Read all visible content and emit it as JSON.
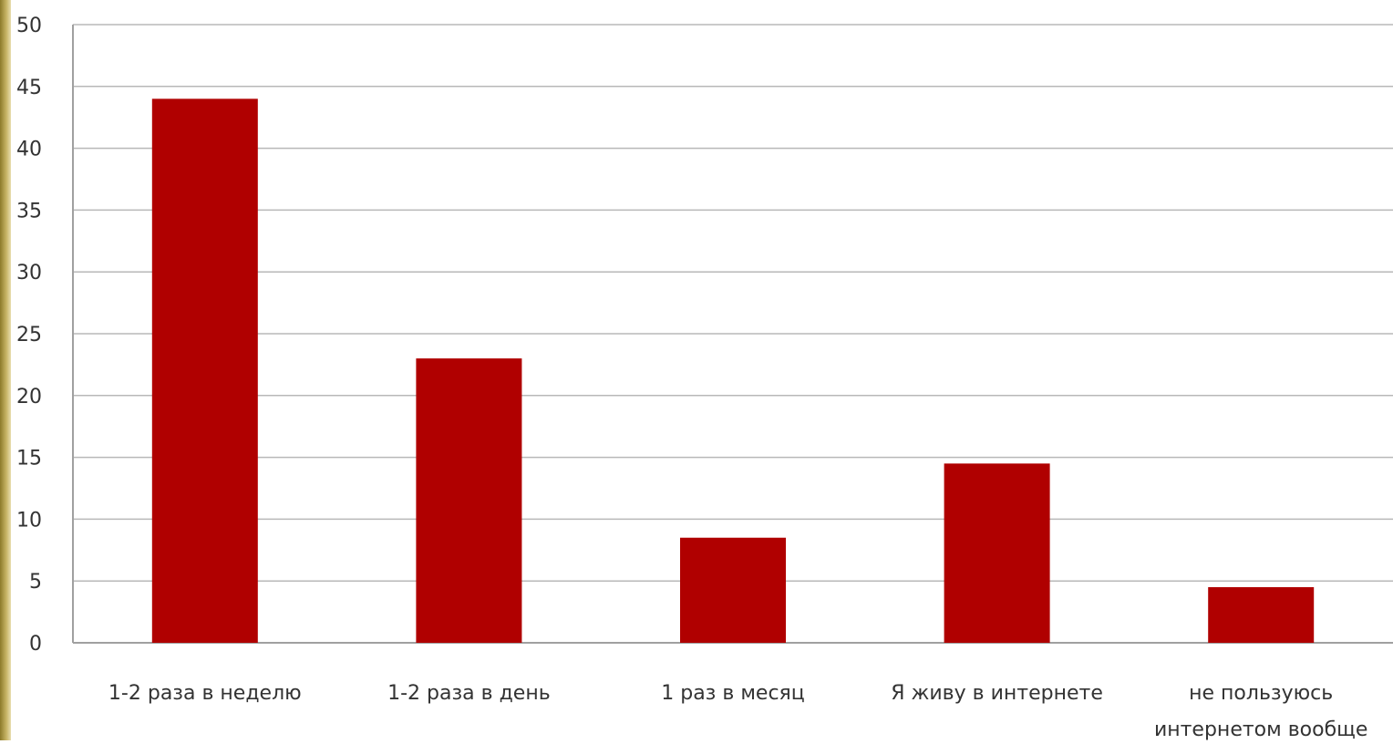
{
  "chart_data": {
    "type": "bar",
    "title": "",
    "xlabel": "",
    "ylabel": "",
    "categories": [
      [
        "1-2 раза в неделю"
      ],
      [
        "1-2 раза в день"
      ],
      [
        "1 раз в месяц"
      ],
      [
        "Я живу в интернете"
      ],
      [
        "не пользуюсь",
        "интернетом вообще"
      ]
    ],
    "values": [
      44,
      23,
      8.5,
      14.5,
      4.5
    ],
    "ylim": [
      0,
      50
    ],
    "yticks": [
      0,
      5,
      10,
      15,
      20,
      25,
      30,
      35,
      40,
      45,
      50
    ],
    "grid": true,
    "legend": "none",
    "colors": {
      "bar": "#b00000",
      "grid": "#b8b8b8",
      "axis": "#a0a0a0",
      "text": "#333333"
    }
  }
}
